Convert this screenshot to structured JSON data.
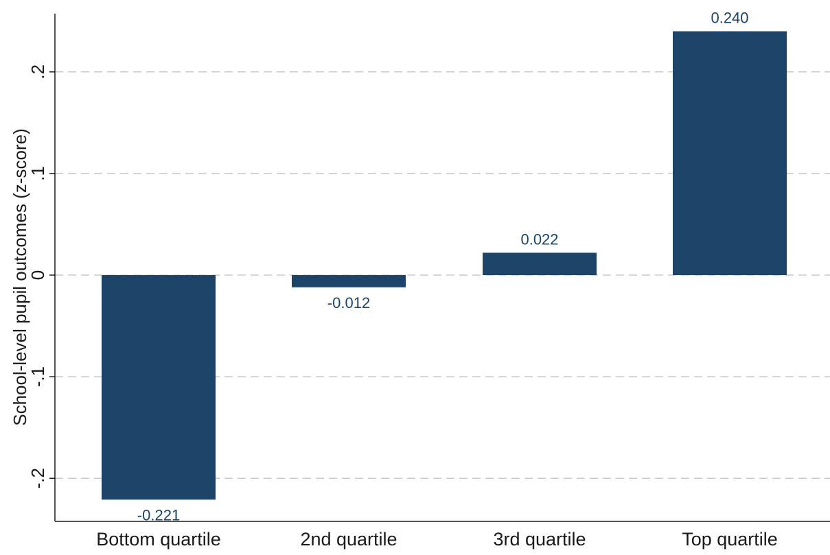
{
  "chart_data": {
    "type": "bar",
    "categories": [
      "Bottom quartile",
      "2nd quartile",
      "3rd quartile",
      "Top quartile"
    ],
    "values": [
      -0.221,
      -0.012,
      0.022,
      0.24
    ],
    "value_labels": [
      "-0.221",
      "-0.012",
      "0.022",
      "0.240"
    ],
    "ylabel": "School-level pupil outcomes (z-score)",
    "yticks": [
      -0.2,
      -0.1,
      0,
      0.1,
      0.2
    ],
    "ytick_labels": [
      "-.2",
      "-.1",
      "0",
      ".1",
      ".2"
    ],
    "ylim": [
      -0.24,
      0.27
    ],
    "grid": true,
    "bar_color": "#1b4468",
    "grid_color": "#c8c8c8",
    "label_color": "#1b4468"
  }
}
